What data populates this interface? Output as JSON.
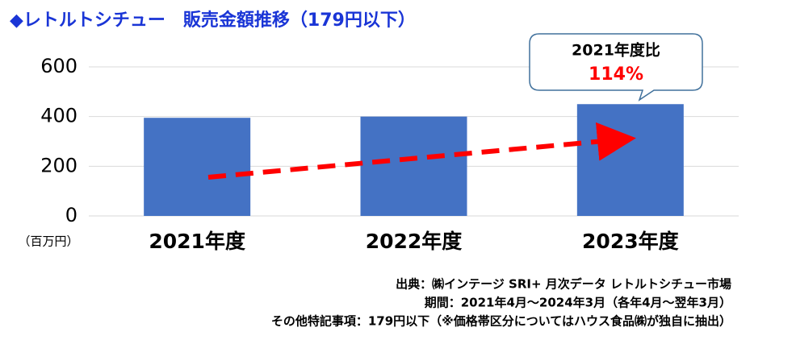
{
  "chart_data": {
    "type": "bar",
    "title": "◆レトルトシチュー　販売金額推移（179円以下）",
    "y_label": "（百万円）",
    "categories": [
      "2021年度",
      "2022年度",
      "2023年度"
    ],
    "values": [
      395,
      400,
      450
    ],
    "color": "#4472c4",
    "ylim": [
      0,
      600
    ],
    "yticks": [
      0,
      200,
      400,
      600
    ],
    "grid": true,
    "callout": {
      "title": "2021年度比",
      "text": "114%"
    },
    "notes": [
      "出典：㈱インテージ SRI+ 月次データ レトルトシチュー市場",
      "期間：2021年4月～2024年3月（各年4月～翌年3月）",
      "その他特記事項：179円以下（※価格帯区分についてはハウス食品㈱が独自に抽出）"
    ]
  }
}
